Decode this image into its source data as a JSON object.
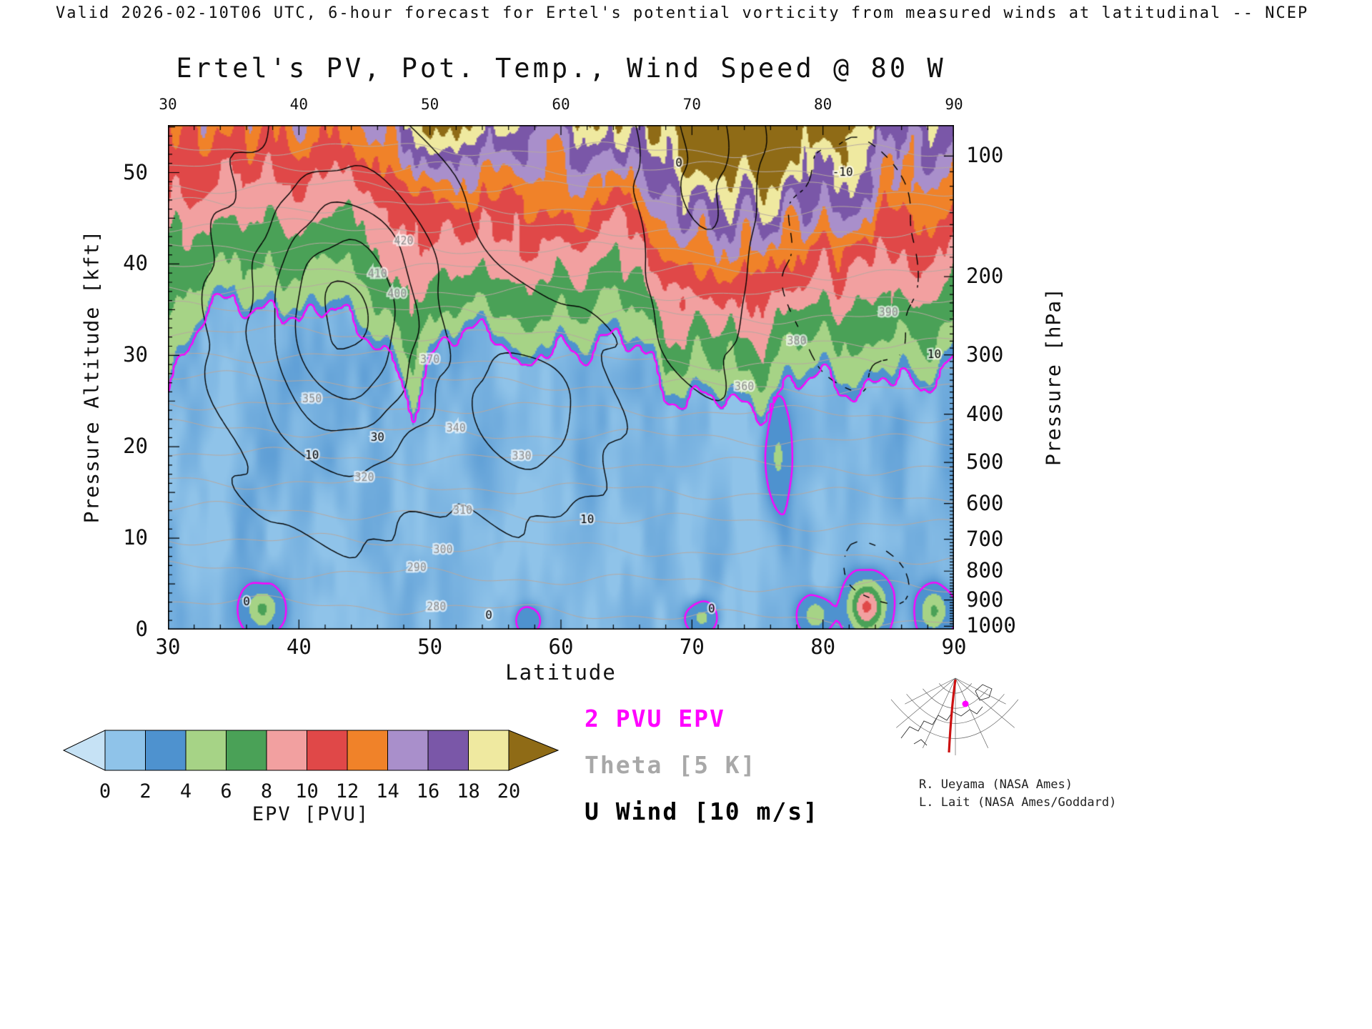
{
  "header": {
    "valid_line": "Valid 2026-02-10T06 UTC, 6-hour forecast for Ertel's potential vorticity from measured winds at latitudinal -- NCEP"
  },
  "chart_data": {
    "type": "heatmap",
    "title": "Ertel's PV, Pot. Temp., Wind Speed @ 80 W",
    "x_axis": {
      "label": "Latitude",
      "min": 30,
      "max": 90,
      "major_ticks": [
        30,
        40,
        50,
        60,
        70,
        80,
        90
      ],
      "minor_tick_step": 2
    },
    "y_axis_left": {
      "label": "Pressure Altitude [kft]",
      "min": 0,
      "max": 55.2,
      "major_ticks": [
        0,
        10,
        20,
        30,
        40,
        50
      ],
      "minor_tick_step": 1
    },
    "y_axis_right": {
      "label": "Pressure [hPa]",
      "ticks": [
        100,
        200,
        300,
        400,
        500,
        600,
        700,
        800,
        900,
        1000
      ]
    },
    "colorbar": {
      "label": "EPV [PVU]",
      "tick_labels": [
        0,
        2,
        4,
        6,
        8,
        10,
        12,
        14,
        16,
        18,
        20
      ],
      "below_range_color": "#c6e2f5",
      "segment_colors": [
        "#8fc3e9",
        "#4e92cf",
        "#a6d386",
        "#4aa157",
        "#f2a0a0",
        "#e04848",
        "#f08229",
        "#a98fcb",
        "#7a57a8",
        "#efe9a0"
      ],
      "above_range_color": "#8f6b16"
    },
    "legend": [
      {
        "label": "2 PVU EPV",
        "color": "#ff00ff",
        "weight": "bold"
      },
      {
        "label": "Theta [5 K]",
        "color": "#a8a8a8",
        "weight": "bold"
      },
      {
        "label": "U Wind [10 m/s]",
        "color": "#000000",
        "weight": "bold"
      }
    ],
    "tropopause_2pvu_contour": {
      "lat": [
        30,
        31.5,
        33,
        35,
        36.5,
        38,
        40,
        41.5,
        43,
        44.5,
        46,
        47.5,
        48.7,
        50,
        51.5,
        53,
        54.5,
        56,
        57,
        58.5,
        60,
        61.5,
        63,
        64.5,
        66,
        67,
        68,
        69.5,
        71,
        72.5,
        74,
        75.5,
        77,
        78.5,
        80,
        81.5,
        83,
        84.5,
        86,
        87.5,
        89,
        90
      ],
      "alt_kft": [
        26,
        31,
        35,
        36.5,
        34,
        35.5,
        33.5,
        35,
        35.5,
        32.5,
        31.5,
        28,
        23.5,
        29.5,
        32,
        33,
        32.5,
        31,
        27.5,
        30.5,
        31,
        29.5,
        31.5,
        32,
        31,
        29,
        25.5,
        24.5,
        26,
        25,
        24.5,
        23.5,
        26.5,
        27.5,
        28,
        26,
        25.5,
        27.5,
        28,
        25.5,
        28.5,
        29.5
      ]
    },
    "epv_top_profile": {
      "lat": [
        30,
        33,
        36,
        39,
        42,
        45,
        48,
        50,
        52,
        54,
        56,
        58,
        60,
        62,
        64,
        66,
        68,
        70,
        72,
        74,
        76,
        78,
        80,
        82,
        84,
        86,
        88,
        90
      ],
      "pvu_at_55kft": [
        12.5,
        13.5,
        13,
        13.5,
        13,
        14,
        16,
        18,
        19.5,
        19,
        18.5,
        17,
        17.5,
        19.5,
        17.5,
        18.5,
        22,
        23.5,
        24,
        24.5,
        24.5,
        23.5,
        22.5,
        21,
        19.5,
        18.5,
        17,
        16.5
      ]
    },
    "theta_surfaces": {
      "interval_K": 5,
      "drawn_interval_K": 10,
      "levels_K": [
        280,
        290,
        300,
        310,
        320,
        330,
        340,
        350,
        360,
        370,
        380,
        390,
        400,
        410,
        420,
        430,
        440,
        450,
        460,
        470
      ],
      "labels": [
        {
          "K": 420,
          "lat": 48
        },
        {
          "K": 410,
          "lat": 46
        },
        {
          "K": 400,
          "lat": 47.5
        },
        {
          "K": 390,
          "lat": 85
        },
        {
          "K": 380,
          "lat": 78
        },
        {
          "K": 370,
          "lat": 50
        },
        {
          "K": 360,
          "lat": 74
        },
        {
          "K": 350,
          "lat": 41
        },
        {
          "K": 340,
          "lat": 52
        },
        {
          "K": 330,
          "lat": 57
        },
        {
          "K": 320,
          "lat": 45
        },
        {
          "K": 310,
          "lat": 52.5
        },
        {
          "K": 300,
          "lat": 51
        },
        {
          "K": 290,
          "lat": 49
        },
        {
          "K": 280,
          "lat": 50.5
        }
      ]
    },
    "u_wind": {
      "interval_ms": 10,
      "levels_ms": [
        -30,
        -20,
        -10,
        0,
        10,
        20,
        30,
        40
      ],
      "negative_style": "dashed",
      "background_ms": -3,
      "centers": [
        {
          "lat": 43.5,
          "alt_kft": 34,
          "peak_ms": 46,
          "sigma_lat": 6.5,
          "sigma_kft": 15
        },
        {
          "lat": 57.5,
          "alt_kft": 24,
          "peak_ms": 20,
          "sigma_lat": 5,
          "sigma_kft": 9
        },
        {
          "lat": 71,
          "alt_kft": 54,
          "peak_ms": 16,
          "sigma_lat": 4,
          "sigma_kft": 22
        },
        {
          "lat": 82,
          "alt_kft": 40,
          "peak_ms": -17,
          "sigma_lat": 5.5,
          "sigma_kft": 14
        },
        {
          "lat": 84,
          "alt_kft": 6,
          "peak_ms": -9,
          "sigma_lat": 5,
          "sigma_kft": 7
        }
      ],
      "labels": [
        {
          "text": "10",
          "lat": 41,
          "alt_kft": 19
        },
        {
          "text": "30",
          "lat": 46,
          "alt_kft": 21
        },
        {
          "text": "10",
          "lat": 62,
          "alt_kft": 12
        },
        {
          "text": "0",
          "lat": 54.5,
          "alt_kft": 1.5
        },
        {
          "text": "0",
          "lat": 71.5,
          "alt_kft": 2.2
        },
        {
          "text": "0",
          "lat": 69,
          "alt_kft": 51
        },
        {
          "text": "-10",
          "lat": 81.5,
          "alt_kft": 50
        },
        {
          "text": "10",
          "lat": 88.5,
          "alt_kft": 30
        },
        {
          "text": "0",
          "lat": 36,
          "alt_kft": 3
        }
      ]
    },
    "low_level_epv_anomalies": [
      {
        "lat": 37.2,
        "alt_kft": 2.2,
        "peak_pvu": 5,
        "sigma_lat": 1.3,
        "sigma_kft": 2.2
      },
      {
        "lat": 57.5,
        "alt_kft": 1.0,
        "peak_pvu": 2.6,
        "sigma_lat": 1.0,
        "sigma_kft": 1.5
      },
      {
        "lat": 70.8,
        "alt_kft": 1.2,
        "peak_pvu": 4,
        "sigma_lat": 1.2,
        "sigma_kft": 1.8
      },
      {
        "lat": 76.6,
        "alt_kft": 19,
        "peak_pvu": 3.2,
        "sigma_lat": 0.9,
        "sigma_kft": 6
      },
      {
        "lat": 79.5,
        "alt_kft": 1.5,
        "peak_pvu": 5,
        "sigma_lat": 1.1,
        "sigma_kft": 2.0
      },
      {
        "lat": 83.4,
        "alt_kft": 2.5,
        "peak_pvu": 9,
        "sigma_lat": 1.4,
        "sigma_kft": 2.8
      },
      {
        "lat": 88.6,
        "alt_kft": 2.0,
        "peak_pvu": 5,
        "sigma_lat": 1.2,
        "sigma_kft": 2.4
      }
    ]
  },
  "inset_map": {
    "credits": [
      "R. Ueyama (NASA Ames)",
      "L. Lait (NASA Ames/Goddard)"
    ],
    "marker_color": "#ff00ff",
    "meridian_color": "#cc1111"
  }
}
